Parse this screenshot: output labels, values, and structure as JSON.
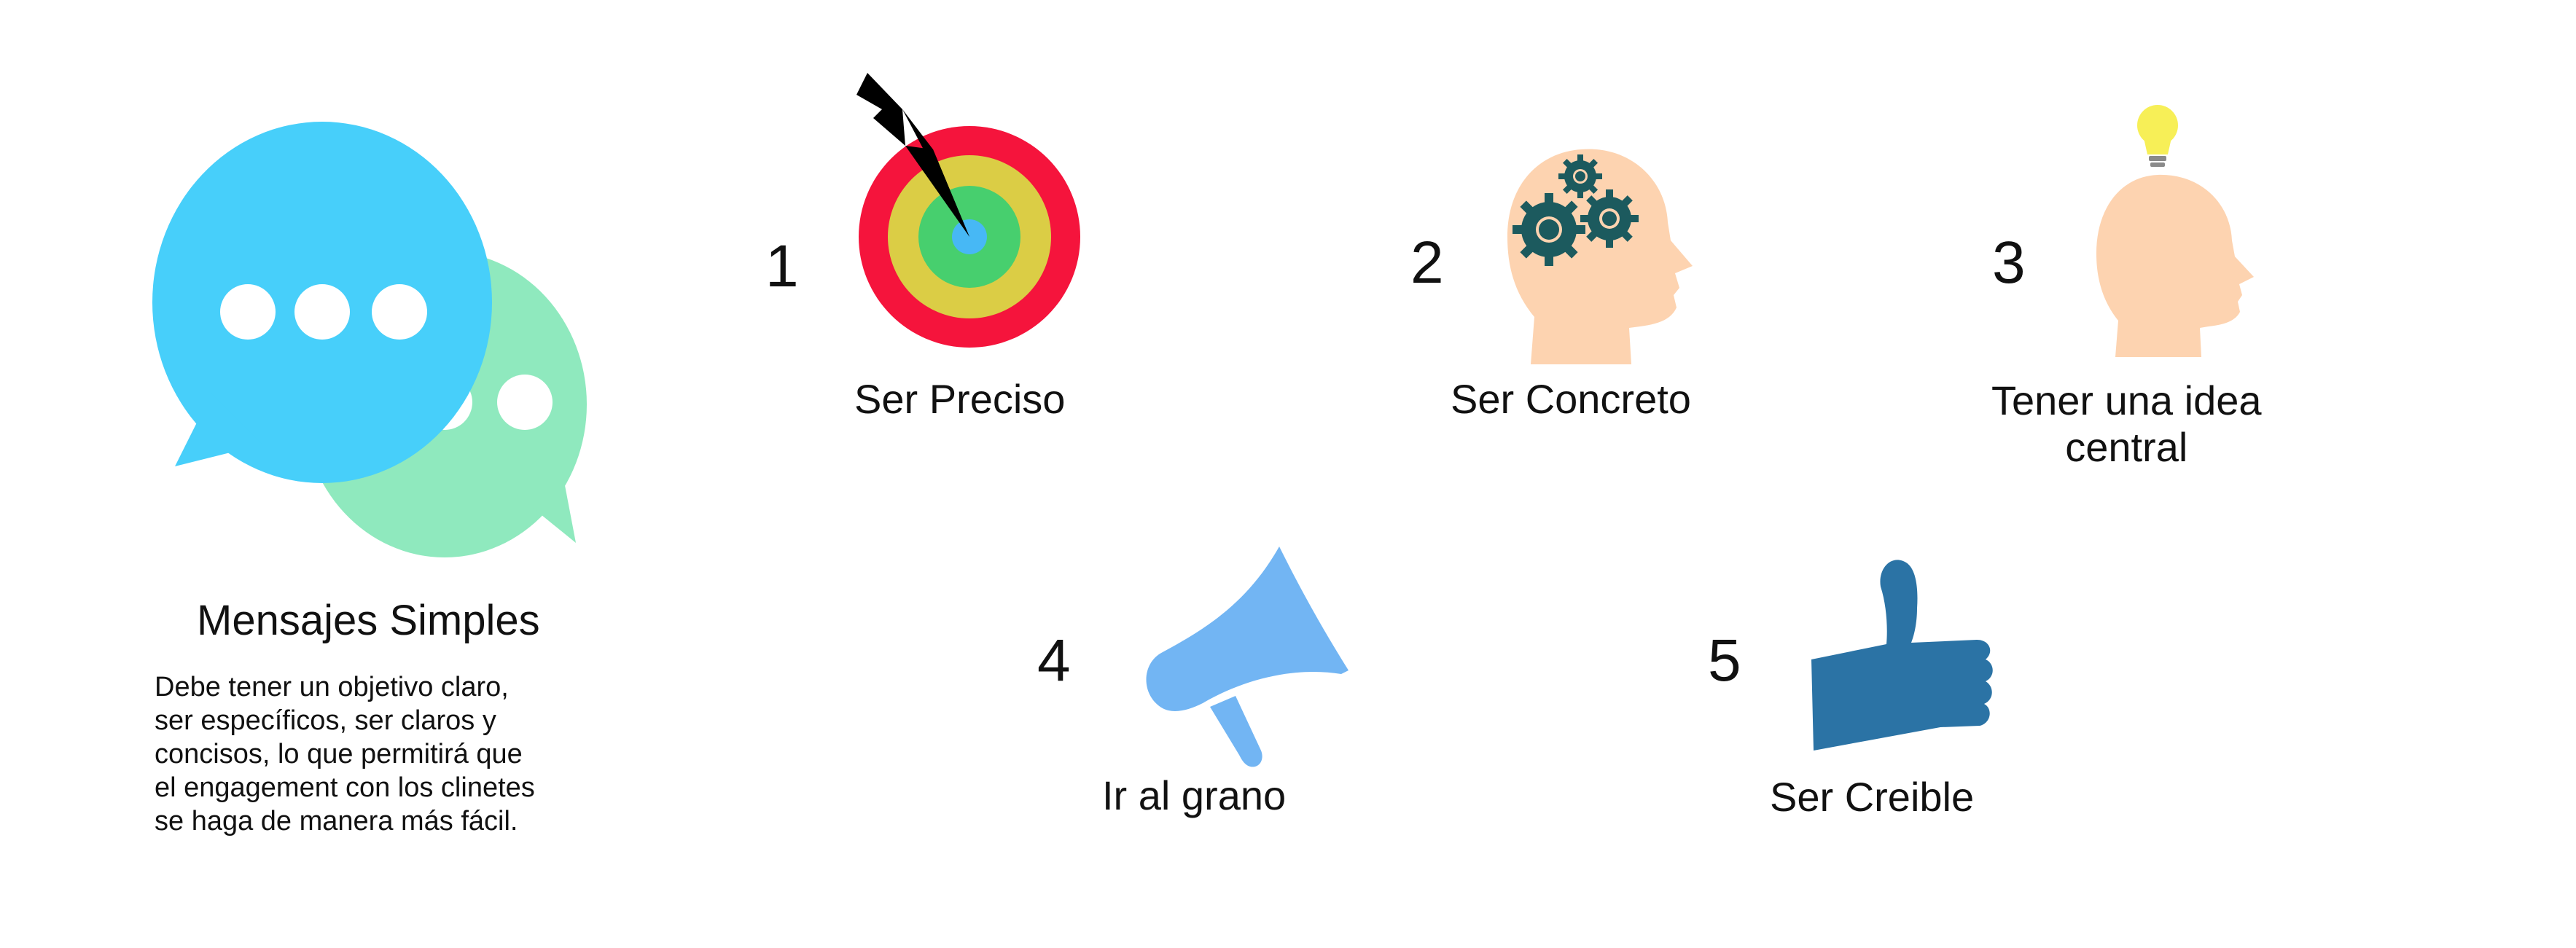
{
  "intro": {
    "title": "Mensajes Simples",
    "description_lines": [
      "Debe tener un objetivo claro,",
      "ser específicos, ser claros y",
      "concisos, lo que permitirá que",
      "el engagement con los clinetes",
      "se haga de manera más fácil."
    ],
    "icon": "speech-bubbles-icon"
  },
  "steps": [
    {
      "number": "1",
      "label": "Ser Preciso",
      "icon": "target-dart-icon"
    },
    {
      "number": "2",
      "label": "Ser Concreto",
      "icon": "head-gears-icon"
    },
    {
      "number": "3",
      "label_lines": [
        "Tener una idea",
        "central"
      ],
      "icon": "head-lightbulb-icon"
    },
    {
      "number": "4",
      "label": "Ir al grano",
      "icon": "megaphone-icon"
    },
    {
      "number": "5",
      "label": "Ser Creible",
      "icon": "thumbs-up-icon"
    }
  ],
  "colors": {
    "bubble_blue": "#47cffa",
    "bubble_green": "#8fe9be",
    "target_red": "#f5143c",
    "target_yellow": "#dbcd45",
    "target_green": "#47cf6e",
    "target_center": "#47b8f5",
    "skin": "#fdd3b0",
    "gear": "#1c5a5e",
    "bulb": "#f7ef57",
    "megaphone": "#72b5f3",
    "thumb": "#2b73a5"
  }
}
